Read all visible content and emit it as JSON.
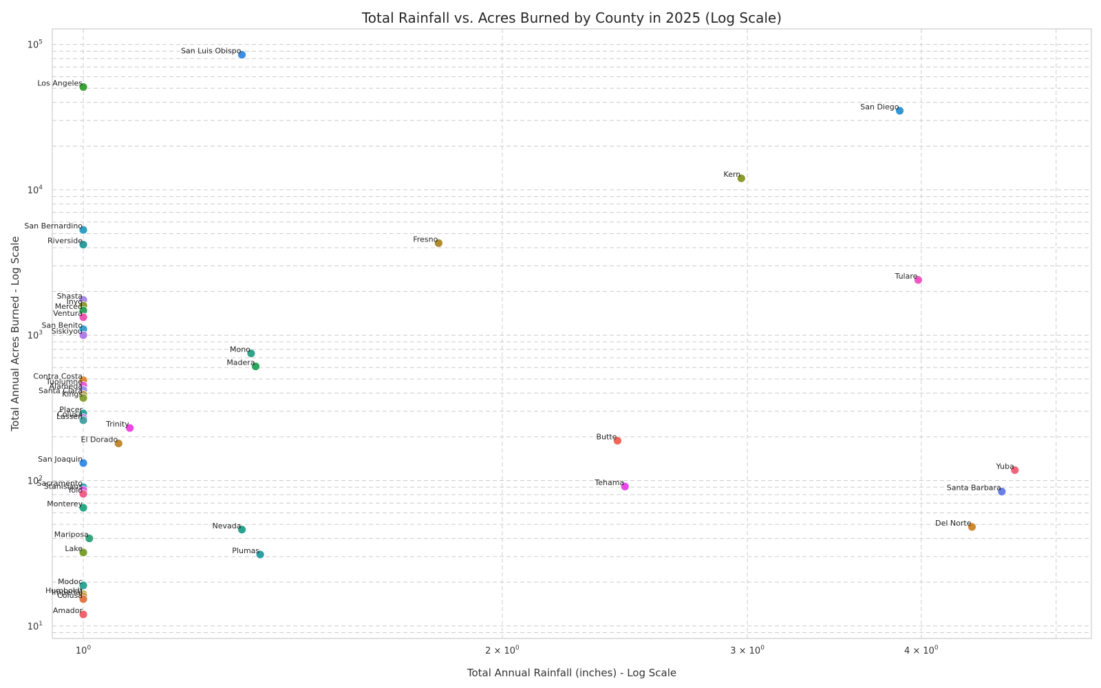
{
  "chart_data": {
    "type": "scatter",
    "title": "Total Rainfall vs. Acres Burned by County in 2025 (Log Scale)",
    "xlabel": "Total Annual Rainfall (inches) - Log Scale",
    "ylabel": "Total Annual Acres Burned - Log Scale",
    "xscale": "log",
    "yscale": "log",
    "xlim": [
      0.95,
      5.3
    ],
    "ylim": [
      8.2,
      128000
    ],
    "grid": true,
    "x_ticks": [
      {
        "value": 1,
        "base": "10",
        "exp": "0"
      },
      {
        "value": 2,
        "base": "2 × 10",
        "exp": "0"
      },
      {
        "value": 3,
        "base": "3 × 10",
        "exp": "0"
      },
      {
        "value": 4,
        "base": "4 × 10",
        "exp": "0"
      }
    ],
    "x_minor_ticks": [
      5
    ],
    "y_ticks": [
      {
        "value": 10,
        "base": "10",
        "exp": "1"
      },
      {
        "value": 100,
        "base": "10",
        "exp": "2"
      },
      {
        "value": 1000,
        "base": "10",
        "exp": "3"
      },
      {
        "value": 10000,
        "base": "10",
        "exp": "4"
      },
      {
        "value": 100000,
        "base": "10",
        "exp": "5"
      }
    ],
    "points": [
      {
        "county": "San Luis Obispo",
        "rainfall": 1.3,
        "acres": 85000,
        "color": "#3d8de0"
      },
      {
        "county": "Los Angeles",
        "rainfall": 1.0,
        "acres": 51000,
        "color": "#3aa336"
      },
      {
        "county": "San Diego",
        "rainfall": 3.86,
        "acres": 35000,
        "color": "#3596d6"
      },
      {
        "county": "Kern",
        "rainfall": 2.97,
        "acres": 12000,
        "color": "#8d9a2c"
      },
      {
        "county": "San Bernardino",
        "rainfall": 1.0,
        "acres": 5300,
        "color": "#31a0c0"
      },
      {
        "county": "Riverside",
        "rainfall": 1.0,
        "acres": 4200,
        "color": "#2d9c9c"
      },
      {
        "county": "Fresno",
        "rainfall": 1.8,
        "acres": 4300,
        "color": "#b08b31"
      },
      {
        "county": "Tulare",
        "rainfall": 3.98,
        "acres": 2400,
        "color": "#ef58c0"
      },
      {
        "county": "Shasta",
        "rainfall": 1.0,
        "acres": 1750,
        "color": "#a98ae6"
      },
      {
        "county": "Inyo",
        "rainfall": 1.0,
        "acres": 1600,
        "color": "#8f9b33"
      },
      {
        "county": "Merced",
        "rainfall": 1.0,
        "acres": 1480,
        "color": "#31a35a"
      },
      {
        "county": "Ventura",
        "rainfall": 1.0,
        "acres": 1330,
        "color": "#f056b3"
      },
      {
        "county": "San Benito",
        "rainfall": 1.0,
        "acres": 1100,
        "color": "#38a1d0"
      },
      {
        "county": "Siskiyou",
        "rainfall": 1.0,
        "acres": 1000,
        "color": "#b17ee7"
      },
      {
        "county": "Mono",
        "rainfall": 1.32,
        "acres": 750,
        "color": "#34a38a"
      },
      {
        "county": "Madera",
        "rainfall": 1.33,
        "acres": 610,
        "color": "#2ea55a"
      },
      {
        "county": "Contra Costa",
        "rainfall": 1.0,
        "acres": 490,
        "color": "#d98a33"
      },
      {
        "county": "Tuolumne",
        "rainfall": 1.0,
        "acres": 450,
        "color": "#ee5ad6"
      },
      {
        "county": "Alameda",
        "rainfall": 1.0,
        "acres": 420,
        "color": "#9c90e8"
      },
      {
        "county": "Santa Clara",
        "rainfall": 1.0,
        "acres": 390,
        "color": "#b9a05a"
      },
      {
        "county": "Kings",
        "rainfall": 1.0,
        "acres": 370,
        "color": "#89a13a"
      },
      {
        "county": "Placer",
        "rainfall": 1.0,
        "acres": 290,
        "color": "#2ea59a"
      },
      {
        "county": "Colusa",
        "rainfall": 1.0,
        "acres": 270,
        "color": "#b77ee8"
      },
      {
        "county": "Lassen",
        "rainfall": 1.0,
        "acres": 260,
        "color": "#4aa3a0"
      },
      {
        "county": "Trinity",
        "rainfall": 1.08,
        "acres": 230,
        "color": "#ee46e0"
      },
      {
        "county": "El Dorado",
        "rainfall": 1.06,
        "acres": 180,
        "color": "#bf8a33"
      },
      {
        "county": "Butte",
        "rainfall": 2.42,
        "acres": 188,
        "color": "#f2645a"
      },
      {
        "county": "San Joaquin",
        "rainfall": 1.0,
        "acres": 132,
        "color": "#3b8fe2"
      },
      {
        "county": "Yuba",
        "rainfall": 4.67,
        "acres": 118,
        "color": "#f0647a"
      },
      {
        "county": "Tehama",
        "rainfall": 2.45,
        "acres": 91,
        "color": "#e649e8"
      },
      {
        "county": "Sacramento",
        "rainfall": 1.0,
        "acres": 90,
        "color": "#2ea7b0"
      },
      {
        "county": "Stanislaus",
        "rainfall": 1.0,
        "acres": 86,
        "color": "#de5ae6"
      },
      {
        "county": "Yolo",
        "rainfall": 1.0,
        "acres": 81,
        "color": "#f05f8a"
      },
      {
        "county": "Santa Barbara",
        "rainfall": 4.57,
        "acres": 84,
        "color": "#6a7fe8"
      },
      {
        "county": "Monterey",
        "rainfall": 1.0,
        "acres": 65,
        "color": "#2aa88a"
      },
      {
        "county": "Del Norte",
        "rainfall": 4.35,
        "acres": 48,
        "color": "#cf8a30"
      },
      {
        "county": "Nevada",
        "rainfall": 1.3,
        "acres": 46,
        "color": "#2aa38e"
      },
      {
        "county": "Mariposa",
        "rainfall": 1.01,
        "acres": 40,
        "color": "#33a67c"
      },
      {
        "county": "Lake",
        "rainfall": 1.0,
        "acres": 32,
        "color": "#7ba030"
      },
      {
        "county": "Plumas",
        "rainfall": 1.34,
        "acres": 31,
        "color": "#2e9fa6"
      },
      {
        "county": "Modoc",
        "rainfall": 1.0,
        "acres": 19,
        "color": "#32a694"
      },
      {
        "county": "Humboldt",
        "rainfall": 1.0,
        "acres": 16.5,
        "color": "#b4a03a"
      },
      {
        "county": "Imperial",
        "rainfall": 1.0,
        "acres": 16,
        "color": "#c79032"
      },
      {
        "county": "Colusa",
        "rainfall": 1.0,
        "acres": 15.3,
        "color": "#e0794a"
      },
      {
        "county": "Amador",
        "rainfall": 1.0,
        "acres": 12,
        "color": "#f0646e"
      }
    ]
  }
}
